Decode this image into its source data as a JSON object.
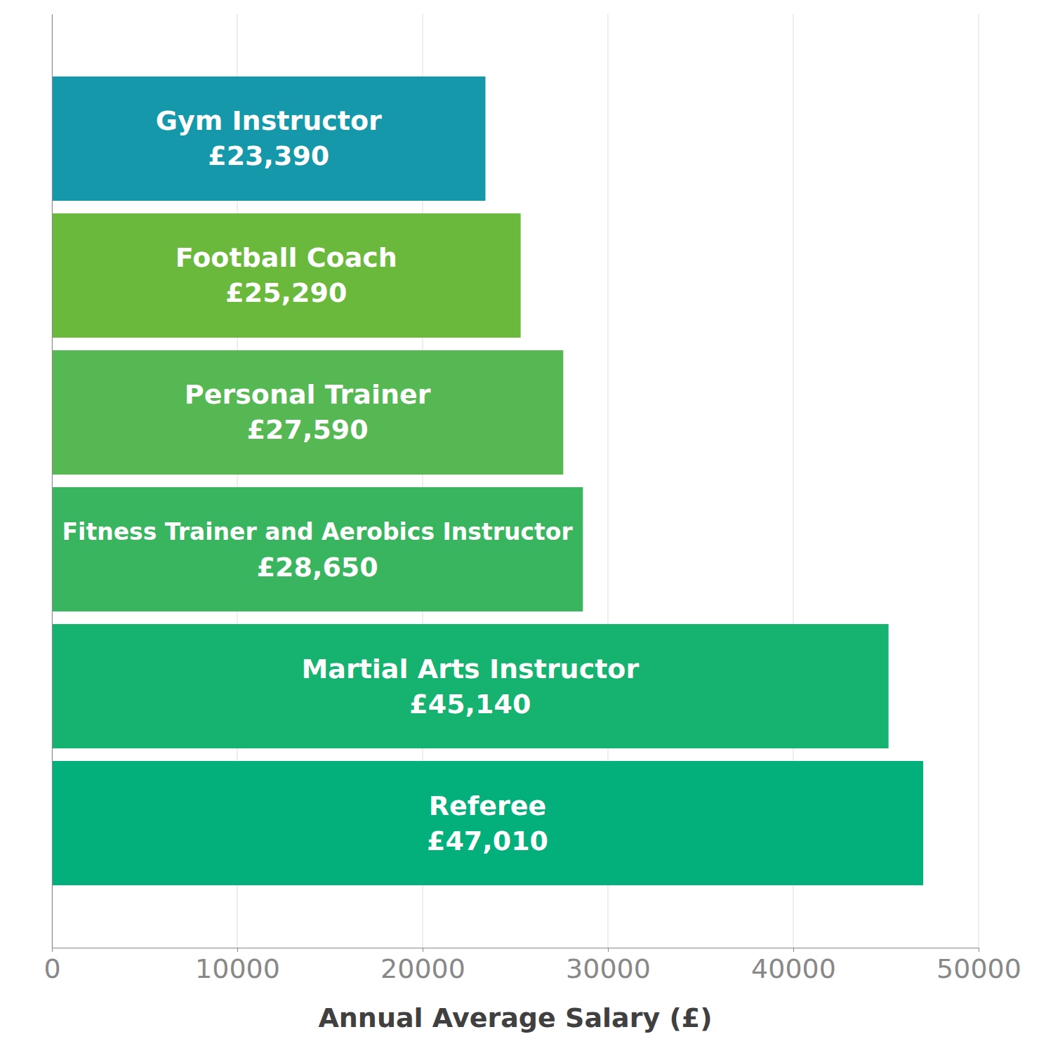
{
  "chart_data": {
    "type": "bar",
    "orientation": "horizontal",
    "x_label": "Annual Average Salary (£)",
    "categories": [
      "Gym Instructor",
      "Football Coach",
      "Personal Trainer",
      "Fitness Trainer and Aerobics Instructor",
      "Martial Arts Instructor",
      "Referee"
    ],
    "values": [
      23390,
      25290,
      27590,
      28650,
      45140,
      47010
    ],
    "value_labels": [
      "£23,390",
      "£25,290",
      "£27,590",
      "£28,650",
      "£45,140",
      "£47,010"
    ],
    "colors": [
      "#1599aa",
      "#6ab93d",
      "#55b852",
      "#39b560",
      "#16b26f",
      "#03af7b"
    ],
    "xlim": [
      0,
      50000
    ],
    "xticks": [
      0,
      10000,
      20000,
      30000,
      40000,
      50000
    ],
    "grid": true,
    "data_labels": true
  }
}
